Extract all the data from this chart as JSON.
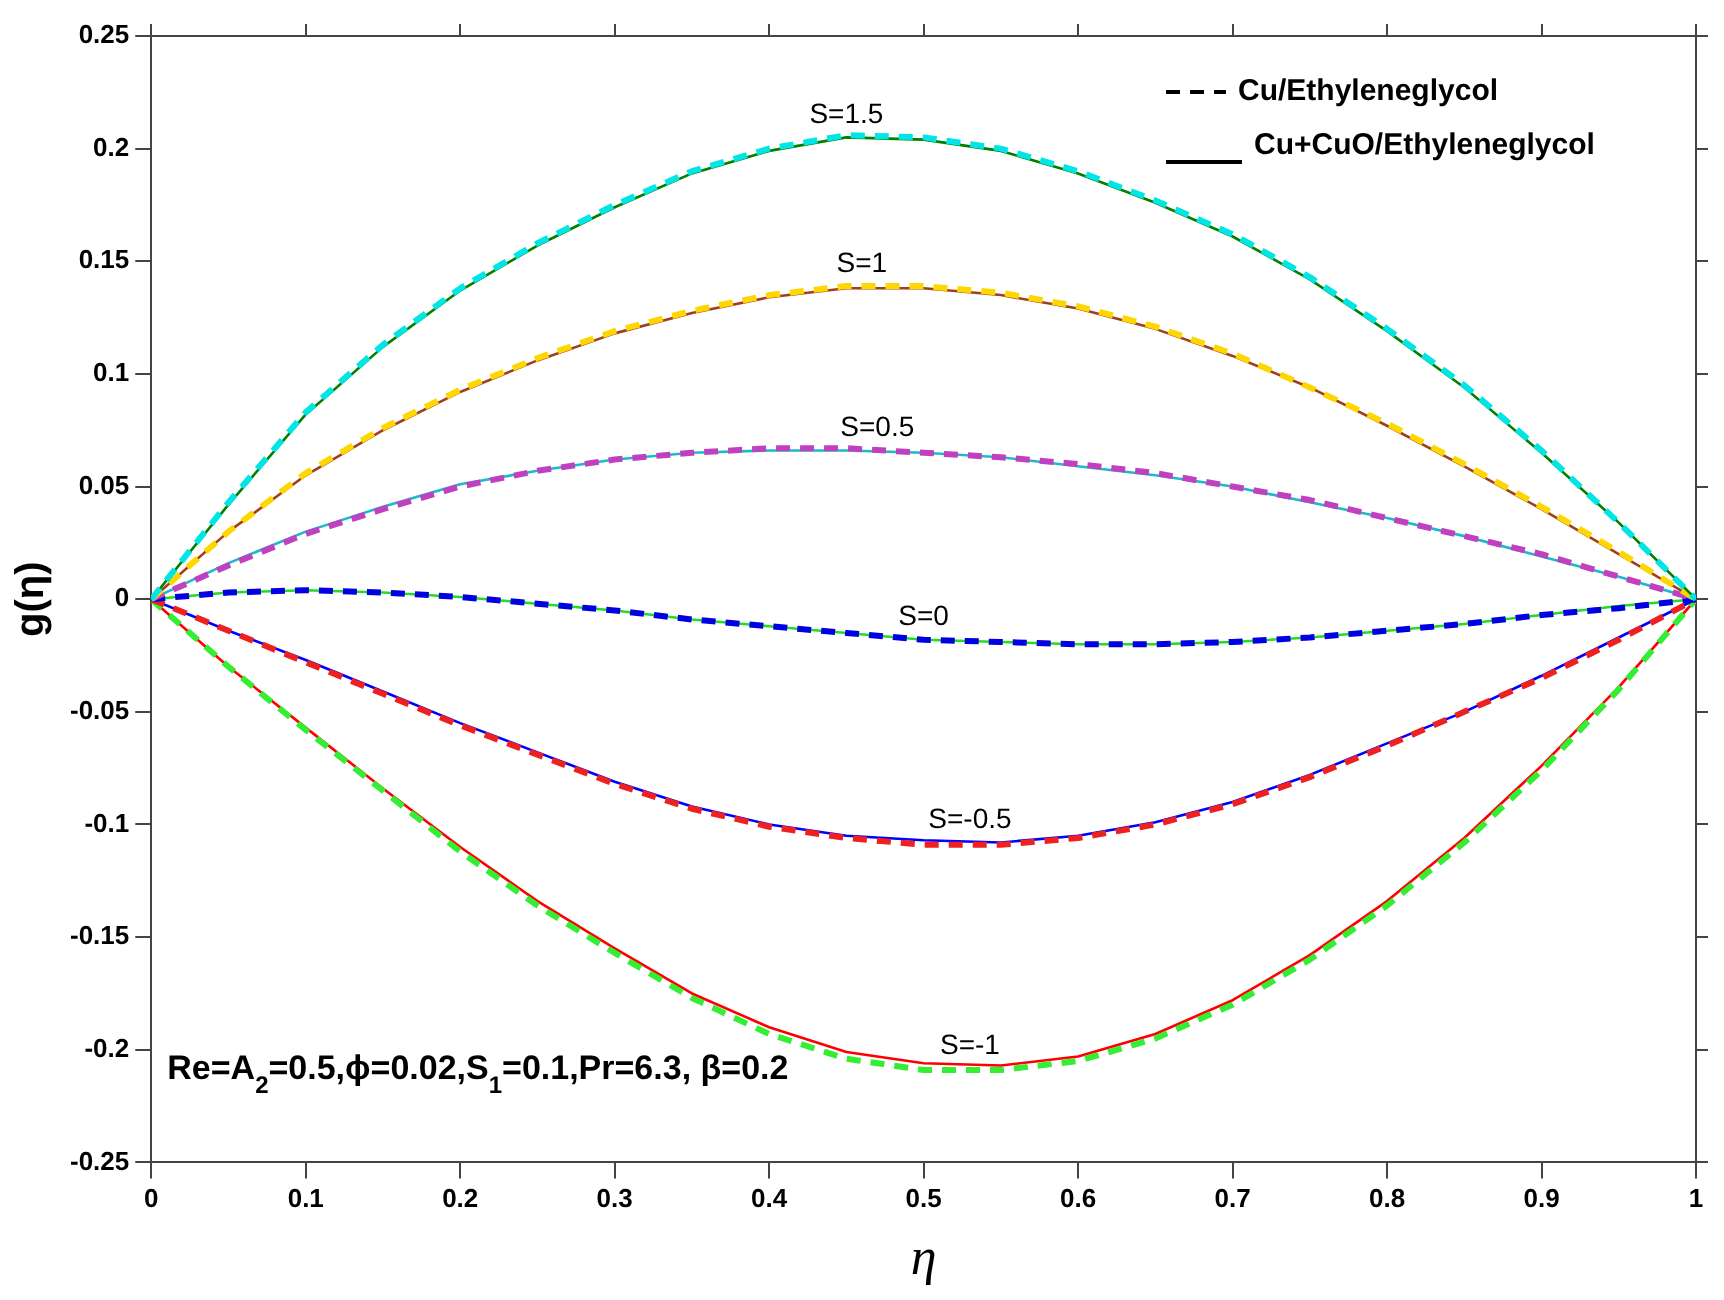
{
  "chart_data": {
    "type": "line",
    "xlabel": "η",
    "ylabel": "g(η)",
    "x": [
      0,
      0.05,
      0.1,
      0.15,
      0.2,
      0.25,
      0.3,
      0.35,
      0.4,
      0.45,
      0.5,
      0.55,
      0.6,
      0.65,
      0.7,
      0.75,
      0.8,
      0.85,
      0.9,
      0.95,
      1
    ],
    "xlim": [
      0,
      1
    ],
    "xticks": [
      0,
      0.1,
      0.2,
      0.3,
      0.4,
      0.5,
      0.6,
      0.7,
      0.8,
      0.9,
      1
    ],
    "ylim": [
      -0.25,
      0.25
    ],
    "yticks": [
      -0.25,
      -0.2,
      -0.15,
      -0.1,
      -0.05,
      0,
      0.05,
      0.1,
      0.15,
      0.2,
      0.25
    ],
    "grid": false,
    "legend": "top right",
    "marker": "none",
    "series": [
      {
        "color": "#00e5e5",
        "line_style": "dashed",
        "values": [
          0,
          0.043,
          0.083,
          0.113,
          0.138,
          0.158,
          0.175,
          0.19,
          0.2,
          0.206,
          0.205,
          0.2,
          0.19,
          0.177,
          0.162,
          0.143,
          0.12,
          0.095,
          0.066,
          0.034,
          0
        ]
      },
      {
        "color": "#008000",
        "line_style": "solid",
        "values": [
          0,
          0.042,
          0.082,
          0.112,
          0.137,
          0.157,
          0.174,
          0.189,
          0.199,
          0.205,
          0.204,
          0.199,
          0.189,
          0.176,
          0.161,
          0.142,
          0.119,
          0.094,
          0.065,
          0.034,
          0
        ]
      },
      {
        "color": "#ffd700",
        "line_style": "dashed",
        "values": [
          0,
          0.03,
          0.056,
          0.076,
          0.093,
          0.107,
          0.119,
          0.128,
          0.135,
          0.139,
          0.139,
          0.136,
          0.13,
          0.121,
          0.109,
          0.094,
          0.078,
          0.06,
          0.041,
          0.021,
          0
        ]
      },
      {
        "color": "#a0401a",
        "line_style": "solid",
        "values": [
          0,
          0.03,
          0.055,
          0.075,
          0.092,
          0.106,
          0.118,
          0.127,
          0.134,
          0.138,
          0.138,
          0.135,
          0.129,
          0.12,
          0.108,
          0.094,
          0.077,
          0.059,
          0.04,
          0.02,
          0
        ]
      },
      {
        "color": "#c040c0",
        "line_style": "dashed",
        "values": [
          0,
          0.015,
          0.029,
          0.04,
          0.05,
          0.057,
          0.062,
          0.065,
          0.067,
          0.067,
          0.065,
          0.063,
          0.06,
          0.056,
          0.05,
          0.044,
          0.036,
          0.028,
          0.02,
          0.01,
          0
        ]
      },
      {
        "color": "#20b8c8",
        "line_style": "solid",
        "values": [
          0,
          0.016,
          0.03,
          0.041,
          0.051,
          0.057,
          0.062,
          0.065,
          0.066,
          0.066,
          0.065,
          0.063,
          0.059,
          0.055,
          0.05,
          0.043,
          0.036,
          0.028,
          0.019,
          0.01,
          0
        ]
      },
      {
        "color": "#0000e0",
        "line_style": "dashed",
        "values": [
          0,
          0.003,
          0.004,
          0.003,
          0.001,
          -0.002,
          -0.005,
          -0.009,
          -0.012,
          -0.015,
          -0.018,
          -0.019,
          -0.02,
          -0.02,
          -0.019,
          -0.017,
          -0.014,
          -0.011,
          -0.007,
          -0.004,
          0
        ]
      },
      {
        "color": "#22dd22",
        "line_style": "solid",
        "values": [
          0,
          0.003,
          0.004,
          0.003,
          0.001,
          -0.002,
          -0.005,
          -0.009,
          -0.012,
          -0.015,
          -0.018,
          -0.019,
          -0.02,
          -0.02,
          -0.019,
          -0.017,
          -0.014,
          -0.011,
          -0.007,
          -0.003,
          0
        ]
      },
      {
        "color": "#ee2020",
        "line_style": "dashed",
        "values": [
          0,
          -0.014,
          -0.028,
          -0.042,
          -0.056,
          -0.069,
          -0.082,
          -0.093,
          -0.101,
          -0.106,
          -0.109,
          -0.109,
          -0.106,
          -0.1,
          -0.091,
          -0.079,
          -0.065,
          -0.05,
          -0.035,
          -0.018,
          0
        ]
      },
      {
        "color": "#0000ff",
        "line_style": "solid",
        "values": [
          0,
          -0.014,
          -0.027,
          -0.041,
          -0.055,
          -0.068,
          -0.081,
          -0.092,
          -0.1,
          -0.105,
          -0.107,
          -0.108,
          -0.105,
          -0.099,
          -0.09,
          -0.078,
          -0.064,
          -0.05,
          -0.034,
          -0.017,
          0
        ]
      },
      {
        "color": "#33ee33",
        "line_style": "dashed",
        "values": [
          0,
          -0.03,
          -0.058,
          -0.085,
          -0.112,
          -0.136,
          -0.157,
          -0.177,
          -0.193,
          -0.204,
          -0.209,
          -0.209,
          -0.205,
          -0.195,
          -0.18,
          -0.16,
          -0.136,
          -0.108,
          -0.076,
          -0.04,
          0
        ]
      },
      {
        "color": "#ff0000",
        "line_style": "solid",
        "values": [
          0,
          -0.03,
          -0.057,
          -0.084,
          -0.11,
          -0.134,
          -0.155,
          -0.175,
          -0.19,
          -0.201,
          -0.206,
          -0.207,
          -0.203,
          -0.193,
          -0.178,
          -0.158,
          -0.134,
          -0.106,
          -0.074,
          -0.039,
          0
        ]
      },
      {
        "name": "Cu/Ethyleneglycol",
        "color": "#000000",
        "line_style": "dashed",
        "values": [
          null,
          null,
          null,
          null,
          null,
          null,
          null,
          null,
          null,
          null,
          null,
          null,
          null,
          null,
          null,
          null,
          null,
          null,
          null,
          null,
          null
        ]
      },
      {
        "name": "Cu+CuO/Ethyleneglycol",
        "color": "#000000",
        "line_style": "solid",
        "values": [
          null,
          null,
          null,
          null,
          null,
          null,
          null,
          null,
          null,
          null,
          null,
          null,
          null,
          null,
          null,
          null,
          null,
          null,
          null,
          null,
          null
        ]
      }
    ],
    "annotations": [
      {
        "text": "S=1.5",
        "x": 0.45,
        "y": 0.205
      },
      {
        "text": "S=1",
        "x": 0.46,
        "y": 0.139
      },
      {
        "text": "S=0.5",
        "x": 0.47,
        "y": 0.066
      },
      {
        "text": "S=0",
        "x": 0.5,
        "y": -0.018
      },
      {
        "text": "S=-0.5",
        "x": 0.53,
        "y": -0.108
      },
      {
        "text": "S=-1",
        "x": 0.53,
        "y": -0.208
      },
      "Re=A$_{2}$=0.5,ϕ=0.02,S$_{1}$=0.1,Pr=6.3, β=0.2"
    ]
  }
}
